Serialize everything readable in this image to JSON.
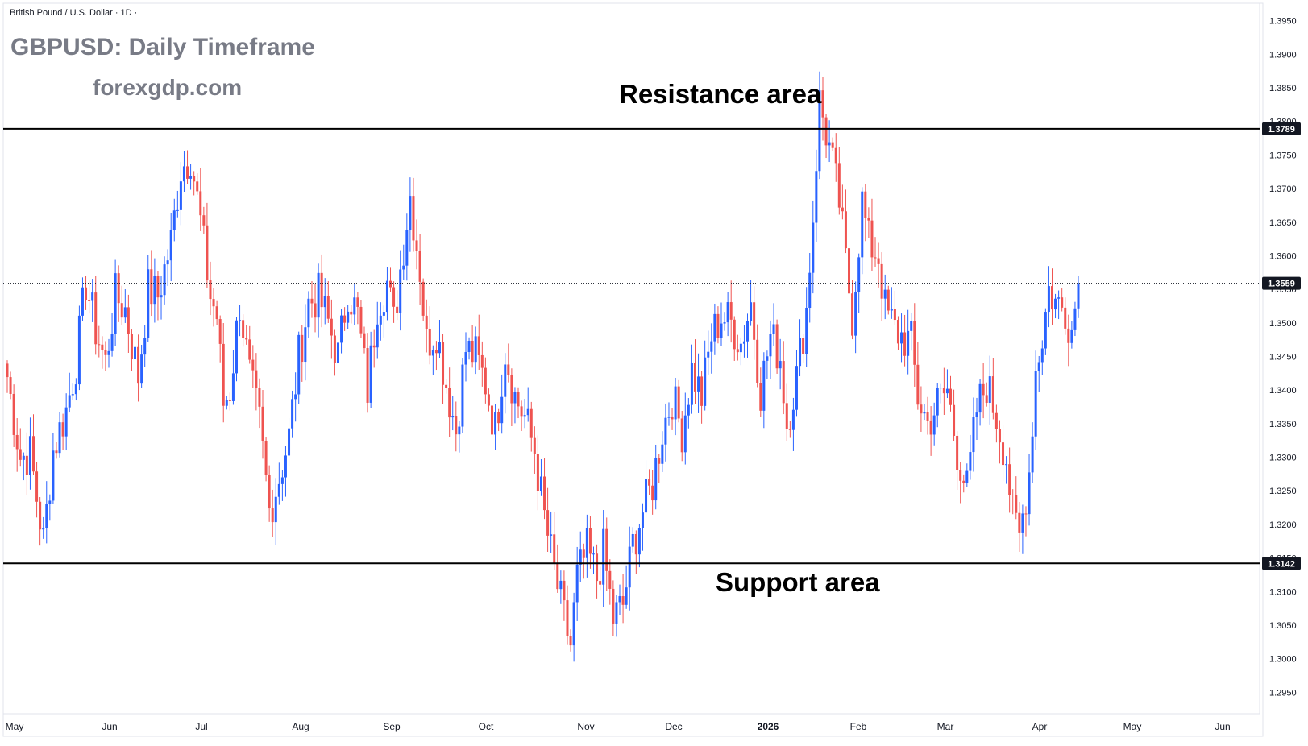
{
  "header": {
    "symbol_line": "British Pound / U.S. Dollar · 1D ·",
    "title": "GBPUSD: Daily Timeframe",
    "watermark": "forexgdp.com"
  },
  "annotations": {
    "resistance_label": "Resistance area",
    "support_label": "Support area"
  },
  "colors": {
    "bullish": "#2962ff",
    "bearish": "#ef5350",
    "level_line": "#000000",
    "price_marker": "#131722",
    "axis_text": "#131722",
    "border": "#e0e3eb"
  },
  "chart_data": {
    "type": "candlestick",
    "instrument": "GBPUSD",
    "timeframe": "1D",
    "y_ticks": [
      "1.2950",
      "1.3000",
      "1.3050",
      "1.3100",
      "1.3150",
      "1.3200",
      "1.3250",
      "1.3300",
      "1.3350",
      "1.3400",
      "1.3450",
      "1.3500",
      "1.3550",
      "1.3600",
      "1.3650",
      "1.3700",
      "1.3750",
      "1.3800",
      "1.3850",
      "1.3900",
      "1.3950"
    ],
    "ylim": [
      1.2918,
      1.3976
    ],
    "x_ticks": [
      "May",
      "Jun",
      "Jul",
      "Aug",
      "Sep",
      "Oct",
      "Nov",
      "Dec",
      "2026",
      "Feb",
      "Mar",
      "Apr",
      "May",
      "Jun"
    ],
    "levels": [
      {
        "name": "Resistance area",
        "value": 1.3789,
        "label": "1.3789"
      },
      {
        "name": "Support area",
        "value": 1.3142,
        "label": "1.3142"
      }
    ],
    "last_price": {
      "value": 1.3559,
      "label": "1.3559"
    },
    "waypoints": [
      [
        0,
        1.342
      ],
      [
        4,
        1.33
      ],
      [
        7,
        1.3305
      ],
      [
        9,
        1.324
      ],
      [
        11,
        1.3175
      ],
      [
        14,
        1.331
      ],
      [
        18,
        1.337
      ],
      [
        21,
        1.344
      ],
      [
        24,
        1.356
      ],
      [
        27,
        1.349
      ],
      [
        30,
        1.344
      ],
      [
        33,
        1.354
      ],
      [
        36,
        1.352
      ],
      [
        40,
        1.342
      ],
      [
        43,
        1.355
      ],
      [
        46,
        1.354
      ],
      [
        50,
        1.362
      ],
      [
        53,
        1.373
      ],
      [
        56,
        1.375
      ],
      [
        59,
        1.365
      ],
      [
        62,
        1.354
      ],
      [
        64,
        1.351
      ],
      [
        66,
        1.338
      ],
      [
        68,
        1.34
      ],
      [
        71,
        1.353
      ],
      [
        74,
        1.342
      ],
      [
        77,
        1.335
      ],
      [
        80,
        1.322
      ],
      [
        83,
        1.327
      ],
      [
        86,
        1.333
      ],
      [
        89,
        1.345
      ],
      [
        92,
        1.353
      ],
      [
        95,
        1.354
      ],
      [
        98,
        1.35
      ],
      [
        101,
        1.345
      ],
      [
        104,
        1.355
      ],
      [
        107,
        1.351
      ],
      [
        110,
        1.34
      ],
      [
        113,
        1.353
      ],
      [
        116,
        1.356
      ],
      [
        118,
        1.35
      ],
      [
        120,
        1.358
      ],
      [
        123,
        1.369
      ],
      [
        126,
        1.358
      ],
      [
        128,
        1.347
      ],
      [
        131,
        1.349
      ],
      [
        134,
        1.341
      ],
      [
        137,
        1.334
      ],
      [
        140,
        1.346
      ],
      [
        143,
        1.345
      ],
      [
        146,
        1.341
      ],
      [
        149,
        1.334
      ],
      [
        152,
        1.346
      ],
      [
        155,
        1.339
      ],
      [
        158,
        1.336
      ],
      [
        161,
        1.331
      ],
      [
        164,
        1.321
      ],
      [
        167,
        1.313
      ],
      [
        170,
        1.306
      ],
      [
        172,
        1.302
      ],
      [
        174,
        1.312
      ],
      [
        177,
        1.316
      ],
      [
        180,
        1.312
      ],
      [
        182,
        1.316
      ],
      [
        185,
        1.306
      ],
      [
        188,
        1.308
      ],
      [
        191,
        1.317
      ],
      [
        194,
        1.322
      ],
      [
        197,
        1.326
      ],
      [
        200,
        1.334
      ],
      [
        203,
        1.339
      ],
      [
        206,
        1.334
      ],
      [
        209,
        1.343
      ],
      [
        212,
        1.339
      ],
      [
        215,
        1.348
      ],
      [
        218,
        1.351
      ],
      [
        221,
        1.35
      ],
      [
        224,
        1.347
      ],
      [
        227,
        1.353
      ],
      [
        230,
        1.34
      ],
      [
        233,
        1.348
      ],
      [
        236,
        1.345
      ],
      [
        238,
        1.335
      ],
      [
        241,
        1.342
      ],
      [
        244,
        1.352
      ],
      [
        246,
        1.366
      ],
      [
        248,
        1.383
      ],
      [
        251,
        1.376
      ],
      [
        254,
        1.368
      ],
      [
        256,
        1.359
      ],
      [
        258,
        1.351
      ],
      [
        261,
        1.368
      ],
      [
        263,
        1.362
      ],
      [
        266,
        1.36
      ],
      [
        268,
        1.352
      ],
      [
        271,
        1.349
      ],
      [
        273,
        1.348
      ],
      [
        276,
        1.347
      ],
      [
        278,
        1.339
      ],
      [
        281,
        1.335
      ],
      [
        284,
        1.338
      ],
      [
        287,
        1.34
      ],
      [
        290,
        1.331
      ],
      [
        293,
        1.325
      ],
      [
        296,
        1.337
      ],
      [
        299,
        1.341
      ],
      [
        302,
        1.336
      ],
      [
        305,
        1.33
      ],
      [
        307,
        1.321
      ],
      [
        309,
        1.318
      ],
      [
        312,
        1.328
      ],
      [
        314,
        1.343
      ],
      [
        316,
        1.348
      ],
      [
        318,
        1.355
      ],
      [
        320,
        1.353
      ],
      [
        323,
        1.352
      ],
      [
        325,
        1.349
      ],
      [
        327,
        1.3559
      ]
    ]
  }
}
